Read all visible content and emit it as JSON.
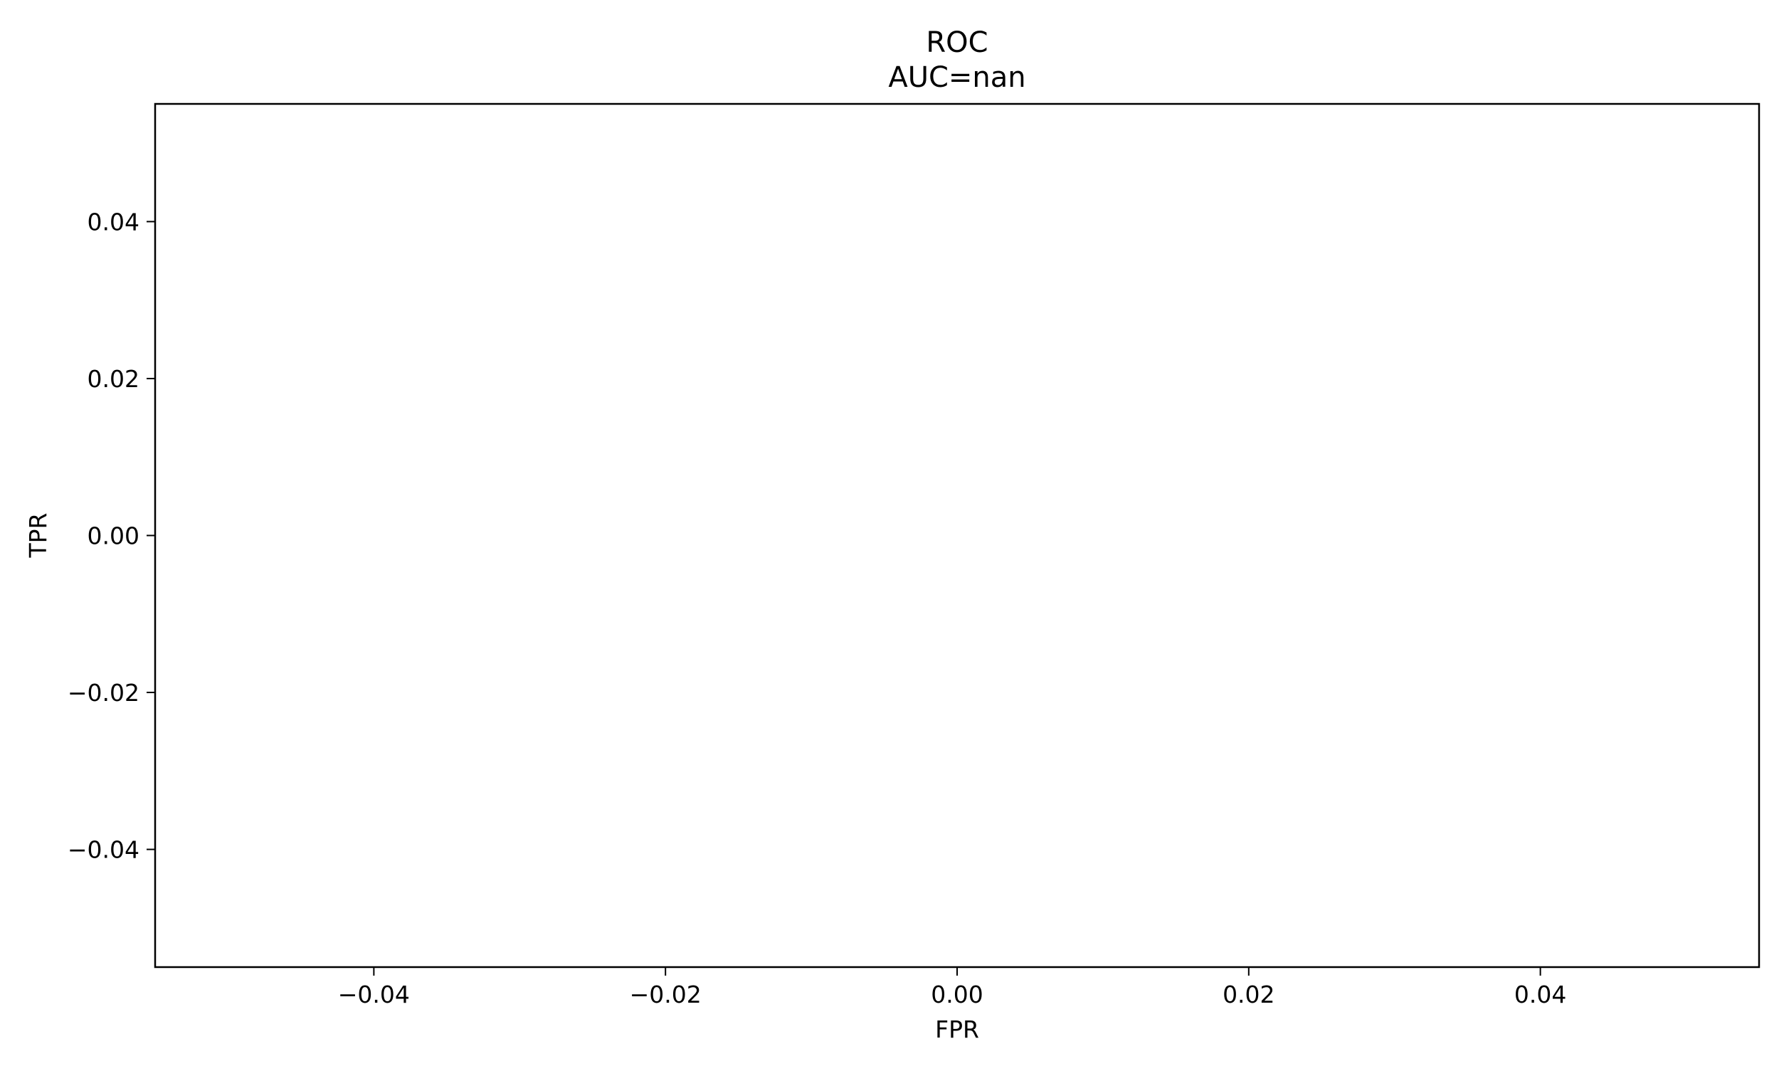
{
  "chart_data": {
    "type": "line",
    "title": "ROC",
    "subtitle": "AUC=nan",
    "xlabel": "FPR",
    "ylabel": "TPR",
    "xlim": [
      -0.055,
      0.055
    ],
    "ylim": [
      -0.055,
      0.055
    ],
    "x_ticks": [
      -0.04,
      -0.02,
      0.0,
      0.02,
      0.04
    ],
    "y_ticks": [
      -0.04,
      -0.02,
      0.0,
      0.02,
      0.04
    ],
    "x_tick_labels": [
      "−0.04",
      "−0.02",
      "0.00",
      "0.02",
      "0.04"
    ],
    "y_tick_labels": [
      "−0.04",
      "−0.02",
      "0.00",
      "0.02",
      "0.04"
    ],
    "grid": false,
    "series": [
      {
        "x": [],
        "y": []
      }
    ]
  },
  "colors": {
    "axis": "#000000",
    "background": "#ffffff"
  }
}
